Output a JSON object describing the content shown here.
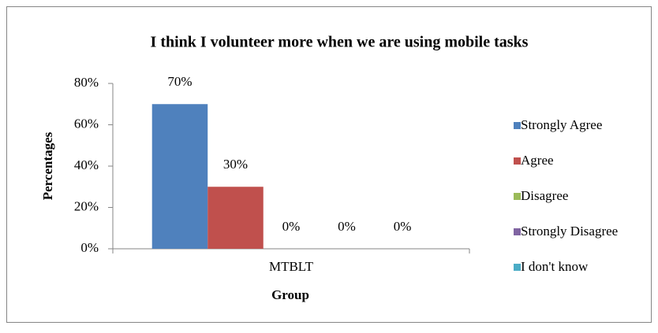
{
  "chart_data": {
    "type": "bar",
    "title": "I think I volunteer more when we are using mobile tasks",
    "x_label": "Group",
    "y_label": "Percentages",
    "categories": [
      "MTBLT"
    ],
    "series": [
      {
        "name": "Strongly Agree",
        "color": "#4f81bd",
        "values": [
          70
        ],
        "value_labels": [
          "70%"
        ]
      },
      {
        "name": "Agree",
        "color": "#c0504d",
        "values": [
          30
        ],
        "value_labels": [
          "30%"
        ]
      },
      {
        "name": "Disagree",
        "color": "#9bbb59",
        "values": [
          0
        ],
        "value_labels": [
          "0%"
        ]
      },
      {
        "name": "Strongly Disagree",
        "color": "#8064a2",
        "values": [
          0
        ],
        "value_labels": [
          "0%"
        ]
      },
      {
        "name": "I don't know",
        "color": "#4bacc6",
        "values": [
          0
        ],
        "value_labels": [
          "0%"
        ]
      }
    ],
    "ylim": [
      0,
      80
    ],
    "yticks": [
      {
        "value": 0,
        "label": "0%"
      },
      {
        "value": 20,
        "label": "20%"
      },
      {
        "value": 40,
        "label": "40%"
      },
      {
        "value": 60,
        "label": "60%"
      },
      {
        "value": 80,
        "label": "80%"
      }
    ],
    "legend": "right"
  }
}
